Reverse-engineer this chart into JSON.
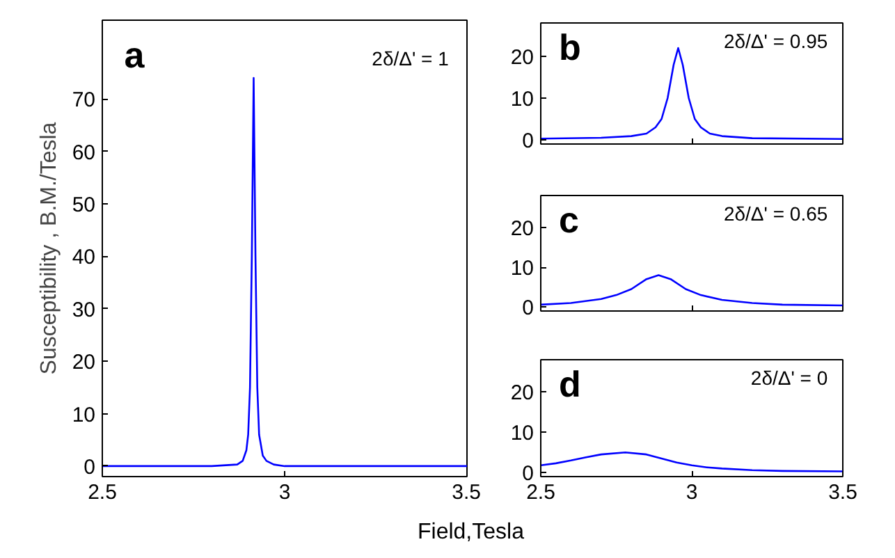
{
  "chart_data": [
    {
      "type": "line",
      "title": "a",
      "xlabel": "Field,Tesla",
      "ylabel": "Susceptibility , B.M./Tesla",
      "annotations": [
        "2δ/Δ' = 1"
      ],
      "xlim": [
        2.5,
        3.5
      ],
      "ylim": [
        -2,
        85
      ],
      "xticks": [
        2.5,
        3,
        3.5
      ],
      "yticks": [
        0,
        10,
        20,
        30,
        40,
        50,
        60,
        70
      ],
      "grid": false,
      "series": [
        {
          "color": "#0000ff",
          "x": [
            2.5,
            2.8,
            2.87,
            2.885,
            2.895,
            2.9,
            2.905,
            2.91,
            2.915,
            2.92,
            2.925,
            2.93,
            2.94,
            2.95,
            2.97,
            3.0,
            3.5
          ],
          "values": [
            0,
            0,
            0.3,
            1,
            3,
            6,
            15,
            40,
            74,
            40,
            15,
            6,
            2,
            1,
            0.3,
            0,
            0
          ]
        }
      ]
    },
    {
      "type": "line",
      "title": "b",
      "annotations": [
        "2δ/Δ' = 0.95"
      ],
      "xlim": [
        2.5,
        3.5
      ],
      "ylim": [
        -1,
        28
      ],
      "xticks": [
        2.5,
        3,
        3.5
      ],
      "yticks": [
        0,
        10,
        20
      ],
      "tick_labels": "y",
      "grid": false,
      "series": [
        {
          "color": "#0000ff",
          "x": [
            2.5,
            2.7,
            2.8,
            2.85,
            2.88,
            2.9,
            2.92,
            2.94,
            2.955,
            2.97,
            2.99,
            3.01,
            3.03,
            3.06,
            3.1,
            3.2,
            3.5
          ],
          "values": [
            0.3,
            0.5,
            0.9,
            1.5,
            3,
            5,
            10,
            18,
            22,
            18,
            10,
            5,
            3,
            1.5,
            0.9,
            0.4,
            0.2
          ]
        }
      ]
    },
    {
      "type": "line",
      "title": "c",
      "annotations": [
        "2δ/Δ' = 0.65"
      ],
      "xlim": [
        2.5,
        3.5
      ],
      "ylim": [
        -1,
        28
      ],
      "xticks": [
        2.5,
        3,
        3.5
      ],
      "yticks": [
        0,
        10,
        20
      ],
      "tick_labels": "y",
      "grid": false,
      "series": [
        {
          "color": "#0000ff",
          "x": [
            2.5,
            2.6,
            2.7,
            2.75,
            2.8,
            2.85,
            2.89,
            2.93,
            2.98,
            3.03,
            3.1,
            3.2,
            3.3,
            3.5
          ],
          "values": [
            0.6,
            1,
            2,
            3,
            4.5,
            7,
            8,
            7,
            4.5,
            3,
            1.8,
            1,
            0.6,
            0.4
          ]
        }
      ]
    },
    {
      "type": "line",
      "title": "d",
      "annotations": [
        "2δ/Δ' = 0"
      ],
      "xlim": [
        2.5,
        3.5
      ],
      "ylim": [
        -1,
        28
      ],
      "xticks": [
        2.5,
        3,
        3.5
      ],
      "yticks": [
        0,
        10,
        20
      ],
      "grid": false,
      "series": [
        {
          "color": "#0000ff",
          "x": [
            2.5,
            2.55,
            2.6,
            2.65,
            2.7,
            2.78,
            2.85,
            2.9,
            2.95,
            3.0,
            3.05,
            3.1,
            3.2,
            3.3,
            3.5
          ],
          "values": [
            1.8,
            2.3,
            3,
            3.8,
            4.5,
            5,
            4.5,
            3.5,
            2.5,
            1.8,
            1.3,
            1,
            0.6,
            0.4,
            0.3
          ]
        }
      ]
    }
  ]
}
